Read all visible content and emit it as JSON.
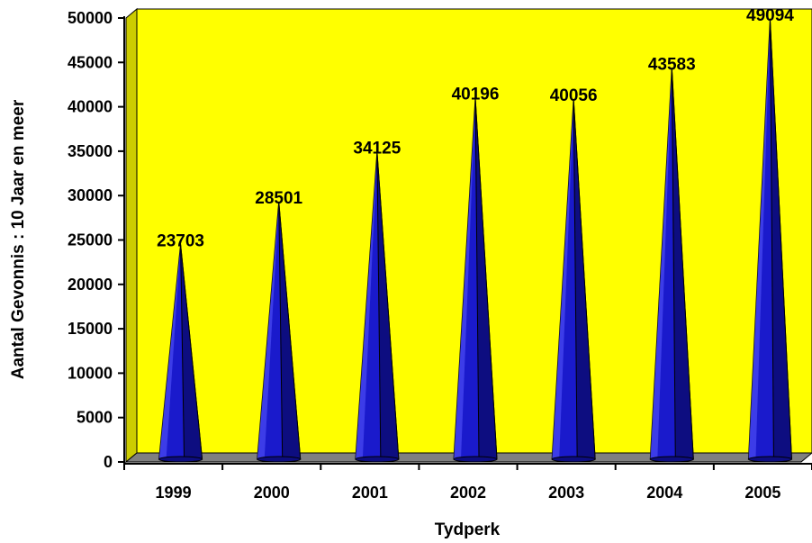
{
  "chart_data": {
    "type": "bar",
    "bar_shape": "cone",
    "categories": [
      "1999",
      "2000",
      "2001",
      "2002",
      "2003",
      "2004",
      "2005"
    ],
    "values": [
      23703,
      28501,
      34125,
      40196,
      40056,
      43583,
      49094
    ],
    "data_labels": [
      "23703",
      "28501",
      "34125",
      "40196",
      "40056",
      "43583",
      "49094"
    ],
    "xlabel": "Tydperk",
    "ylabel": "Aantal Gevonnis : 10 Jaar en meer",
    "ylim": [
      0,
      50000
    ],
    "yticks": [
      0,
      5000,
      10000,
      15000,
      20000,
      25000,
      30000,
      35000,
      40000,
      45000,
      50000
    ],
    "ytick_labels": [
      "0",
      "5000",
      "10000",
      "15000",
      "20000",
      "25000",
      "30000",
      "35000",
      "40000",
      "45000",
      "50000"
    ],
    "grid": false,
    "legend": "none",
    "colors": {
      "plot_background": "#ffff00",
      "side_wall": "#cccc00",
      "floor": "#808080",
      "bar_fill": "#1a1acc",
      "bar_shade": "#0d0d80",
      "bar_highlight": "#5a5aff"
    }
  }
}
